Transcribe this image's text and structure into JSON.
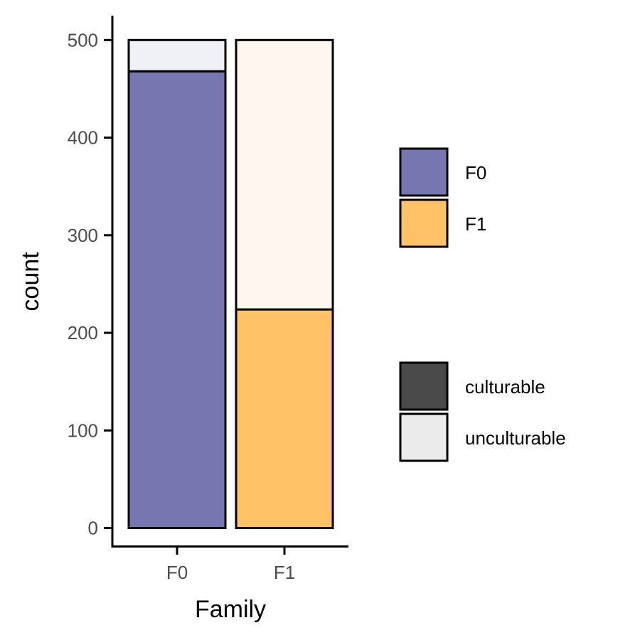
{
  "chart_data": {
    "type": "bar",
    "stacked": true,
    "xlabel": "Family",
    "ylabel": "count",
    "categories": [
      "F0",
      "F1"
    ],
    "ylim": [
      -20,
      525
    ],
    "yticks": [
      0,
      100,
      200,
      300,
      400,
      500
    ],
    "bars": [
      {
        "category": "F0",
        "segments": [
          {
            "group": "culturable",
            "value": 468,
            "color": "#7876B1"
          },
          {
            "group": "unculturable",
            "value": 32,
            "color": "#F0F0F7"
          }
        ]
      },
      {
        "category": "F1",
        "segments": [
          {
            "group": "culturable",
            "value": 224,
            "color": "#FFC266"
          },
          {
            "group": "unculturable",
            "value": 276,
            "color": "#FFF7EF"
          }
        ]
      }
    ],
    "legend_fill": {
      "position": "right",
      "items": [
        {
          "label": "F0",
          "color": "#7876B1"
        },
        {
          "label": "F1",
          "color": "#FFC266"
        }
      ]
    },
    "legend_alpha": {
      "position": "right",
      "items": [
        {
          "label": "culturable",
          "color": "#4A4A4A"
        },
        {
          "label": "unculturable",
          "color": "#EBEBEB"
        }
      ]
    },
    "grid": false
  }
}
